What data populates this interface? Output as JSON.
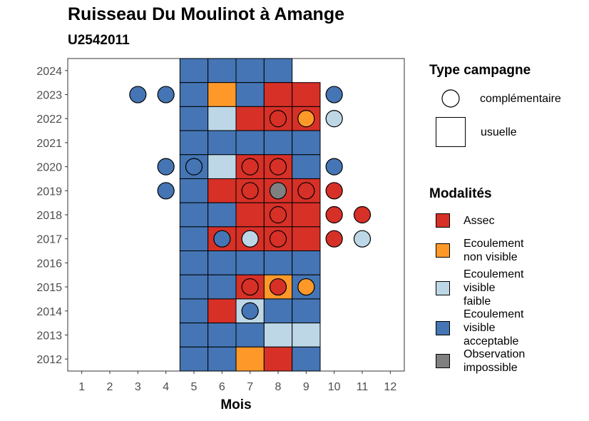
{
  "chart_data": {
    "type": "heatmap",
    "title": "Ruisseau Du Moulinot à Amange",
    "subtitle": "U2542011",
    "xlabel": "Mois",
    "ylabel": "",
    "x_ticks": [
      "1",
      "2",
      "3",
      "4",
      "5",
      "6",
      "7",
      "8",
      "9",
      "10",
      "11",
      "12"
    ],
    "y_ticks": [
      "2012",
      "2013",
      "2014",
      "2015",
      "2016",
      "2017",
      "2018",
      "2019",
      "2020",
      "2021",
      "2022",
      "2023",
      "2024"
    ],
    "xlim": [
      0.5,
      12.5
    ],
    "ylim": [
      2011.5,
      2024.5
    ],
    "colors": {
      "assec": "#d73027",
      "ecoulement_non_visible": "#fe9929",
      "ecoulement_visible_faible": "#bdd7e7",
      "ecoulement_visible_acceptable": "#4575b4",
      "observation_impossible": "#808080"
    },
    "legend_campagne": {
      "title": "Type campagne",
      "items": [
        {
          "label": "complémentaire",
          "shape": "circle"
        },
        {
          "label": "usuelle",
          "shape": "square"
        }
      ]
    },
    "legend_modalites": {
      "title": "Modalités",
      "items": [
        {
          "key": "assec",
          "lines": [
            "Assec"
          ]
        },
        {
          "key": "ecoulement_non_visible",
          "lines": [
            "Ecoulement",
            "non visible"
          ]
        },
        {
          "key": "ecoulement_visible_faible",
          "lines": [
            "Ecoulement",
            "visible",
            "faible"
          ]
        },
        {
          "key": "ecoulement_visible_acceptable",
          "lines": [
            "Ecoulement",
            "visible",
            "acceptable"
          ]
        },
        {
          "key": "observation_impossible",
          "lines": [
            "Observation",
            "impossible"
          ]
        }
      ]
    },
    "usuelle": [
      {
        "year": 2024,
        "values": {
          "5": "ecoulement_visible_acceptable",
          "6": "ecoulement_visible_acceptable",
          "7": "ecoulement_visible_acceptable",
          "8": "ecoulement_visible_acceptable"
        }
      },
      {
        "year": 2023,
        "values": {
          "5": "ecoulement_visible_acceptable",
          "6": "ecoulement_non_visible",
          "7": "ecoulement_visible_acceptable",
          "8": "assec",
          "9": "assec"
        }
      },
      {
        "year": 2022,
        "values": {
          "5": "ecoulement_visible_acceptable",
          "6": "ecoulement_visible_faible",
          "7": "assec",
          "8": "assec",
          "9": "assec"
        }
      },
      {
        "year": 2021,
        "values": {
          "5": "ecoulement_visible_acceptable",
          "6": "ecoulement_visible_acceptable",
          "7": "ecoulement_visible_acceptable",
          "8": "ecoulement_visible_acceptable",
          "9": "ecoulement_visible_acceptable"
        }
      },
      {
        "year": 2020,
        "values": {
          "5": "ecoulement_visible_acceptable",
          "6": "ecoulement_visible_faible",
          "7": "assec",
          "8": "assec",
          "9": "ecoulement_visible_acceptable"
        }
      },
      {
        "year": 2019,
        "values": {
          "5": "ecoulement_visible_acceptable",
          "6": "assec",
          "7": "assec",
          "8": "assec",
          "9": "assec"
        }
      },
      {
        "year": 2018,
        "values": {
          "5": "ecoulement_visible_acceptable",
          "6": "ecoulement_visible_acceptable",
          "7": "assec",
          "8": "assec",
          "9": "assec"
        }
      },
      {
        "year": 2017,
        "values": {
          "5": "ecoulement_visible_acceptable",
          "6": "assec",
          "7": "assec",
          "8": "assec",
          "9": "assec"
        }
      },
      {
        "year": 2016,
        "values": {
          "5": "ecoulement_visible_acceptable",
          "6": "ecoulement_visible_acceptable",
          "7": "ecoulement_visible_acceptable",
          "8": "ecoulement_visible_acceptable",
          "9": "ecoulement_visible_acceptable"
        }
      },
      {
        "year": 2015,
        "values": {
          "5": "ecoulement_visible_acceptable",
          "6": "ecoulement_visible_acceptable",
          "7": "assec",
          "8": "ecoulement_non_visible",
          "9": "ecoulement_visible_acceptable"
        }
      },
      {
        "year": 2014,
        "values": {
          "5": "ecoulement_visible_acceptable",
          "6": "assec",
          "7": "ecoulement_visible_faible",
          "8": "ecoulement_visible_acceptable",
          "9": "ecoulement_visible_acceptable"
        }
      },
      {
        "year": 2013,
        "values": {
          "5": "ecoulement_visible_acceptable",
          "6": "ecoulement_visible_acceptable",
          "7": "ecoulement_visible_acceptable",
          "8": "ecoulement_visible_faible",
          "9": "ecoulement_visible_faible"
        }
      },
      {
        "year": 2012,
        "values": {
          "5": "ecoulement_visible_acceptable",
          "6": "ecoulement_visible_acceptable",
          "7": "ecoulement_non_visible",
          "8": "assec",
          "9": "ecoulement_visible_acceptable"
        }
      }
    ],
    "complementaire": [
      {
        "year": 2023,
        "month": 3,
        "value": "ecoulement_visible_acceptable"
      },
      {
        "year": 2023,
        "month": 4,
        "value": "ecoulement_visible_acceptable"
      },
      {
        "year": 2023,
        "month": 10,
        "value": "ecoulement_visible_acceptable"
      },
      {
        "year": 2022,
        "month": 8,
        "value": "assec"
      },
      {
        "year": 2022,
        "month": 9,
        "value": "ecoulement_non_visible"
      },
      {
        "year": 2022,
        "month": 10,
        "value": "ecoulement_visible_faible"
      },
      {
        "year": 2020,
        "month": 4,
        "value": "ecoulement_visible_acceptable"
      },
      {
        "year": 2020,
        "month": 5,
        "value": "ecoulement_visible_acceptable"
      },
      {
        "year": 2020,
        "month": 7,
        "value": "assec"
      },
      {
        "year": 2020,
        "month": 8,
        "value": "assec"
      },
      {
        "year": 2020,
        "month": 10,
        "value": "ecoulement_visible_acceptable"
      },
      {
        "year": 2019,
        "month": 4,
        "value": "ecoulement_visible_acceptable"
      },
      {
        "year": 2019,
        "month": 7,
        "value": "assec"
      },
      {
        "year": 2019,
        "month": 8,
        "value": "observation_impossible"
      },
      {
        "year": 2019,
        "month": 9,
        "value": "assec"
      },
      {
        "year": 2019,
        "month": 10,
        "value": "assec"
      },
      {
        "year": 2018,
        "month": 8,
        "value": "assec"
      },
      {
        "year": 2018,
        "month": 10,
        "value": "assec"
      },
      {
        "year": 2018,
        "month": 11,
        "value": "assec"
      },
      {
        "year": 2017,
        "month": 6,
        "value": "ecoulement_visible_acceptable"
      },
      {
        "year": 2017,
        "month": 7,
        "value": "ecoulement_visible_faible"
      },
      {
        "year": 2017,
        "month": 8,
        "value": "assec"
      },
      {
        "year": 2017,
        "month": 10,
        "value": "assec"
      },
      {
        "year": 2017,
        "month": 11,
        "value": "ecoulement_visible_faible"
      },
      {
        "year": 2015,
        "month": 7,
        "value": "assec"
      },
      {
        "year": 2015,
        "month": 8,
        "value": "assec"
      },
      {
        "year": 2015,
        "month": 9,
        "value": "ecoulement_non_visible"
      },
      {
        "year": 2014,
        "month": 7,
        "value": "ecoulement_visible_acceptable"
      }
    ]
  }
}
